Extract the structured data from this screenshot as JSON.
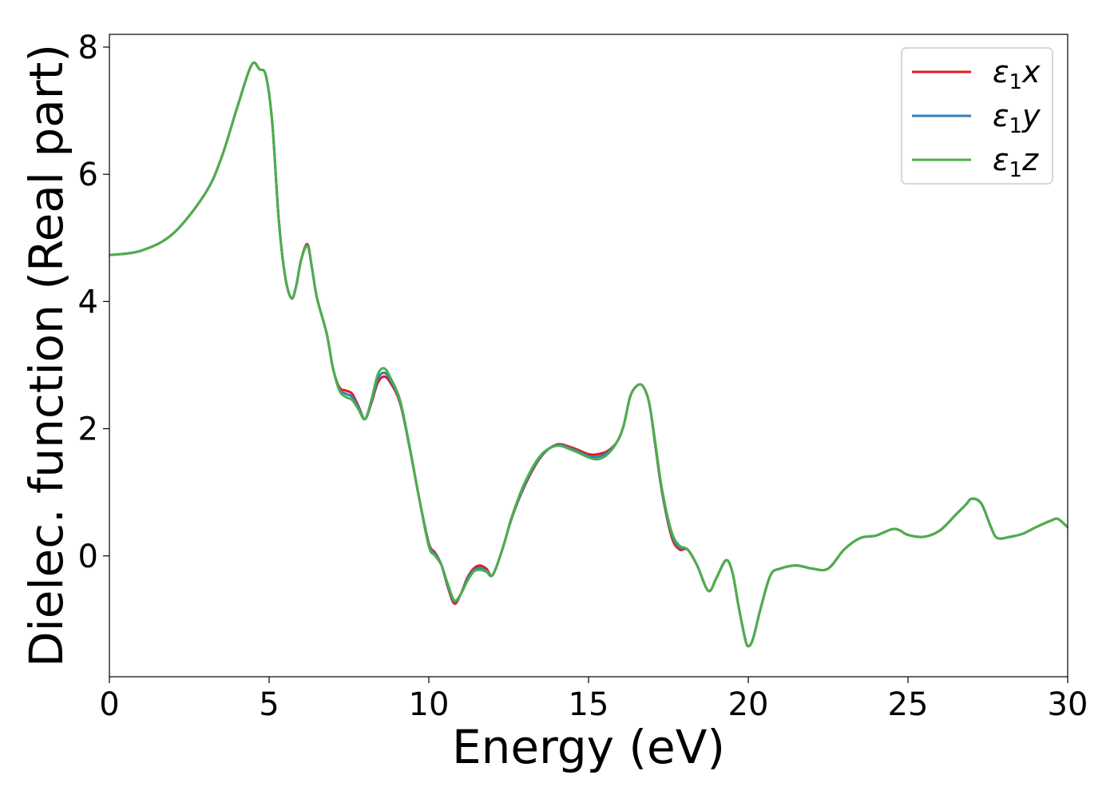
{
  "chart_data": {
    "type": "line",
    "title": "",
    "xlabel": "Energy (eV)",
    "ylabel": "Dielec. function (Real part)",
    "xlim": [
      0,
      30
    ],
    "ylim": [
      -1.9,
      8.2
    ],
    "xticks": [
      0,
      5,
      10,
      15,
      20,
      25,
      30
    ],
    "yticks": [
      0,
      2,
      4,
      6,
      8
    ],
    "xtick_labels": [
      "0",
      "5",
      "10",
      "15",
      "20",
      "25",
      "30"
    ],
    "ytick_labels": [
      "0",
      "2",
      "4",
      "6",
      "8"
    ],
    "grid": false,
    "legend_position": "top-right",
    "series": [
      {
        "name": "ε1x",
        "symbol": "ε",
        "subscript": "1",
        "axis": "x",
        "color": "#e41a1c",
        "x": [
          0,
          1,
          2,
          3,
          3.5,
          4,
          4.45,
          4.7,
          4.9,
          5.1,
          5.3,
          5.5,
          5.7,
          5.85,
          6,
          6.2,
          6.35,
          6.5,
          6.8,
          7,
          7.2,
          7.4,
          7.6,
          7.8,
          8,
          8.2,
          8.4,
          8.6,
          8.8,
          9.1,
          9.4,
          9.7,
          10,
          10.2,
          10.4,
          10.6,
          10.8,
          11,
          11.2,
          11.4,
          11.6,
          11.8,
          12,
          12.3,
          12.6,
          13,
          13.5,
          14,
          14.5,
          15,
          15.3,
          15.6,
          15.9,
          16.1,
          16.3,
          16.5,
          16.7,
          16.9,
          17.1,
          17.3,
          17.6,
          17.85,
          18.1,
          18.4,
          18.75,
          19,
          19.3,
          19.5,
          19.7,
          19.9,
          20,
          20.15,
          20.4,
          20.7,
          21,
          21.5,
          22,
          22.5,
          23,
          23.5,
          24,
          24.5,
          24.75,
          25,
          25.5,
          26,
          26.5,
          26.8,
          27,
          27.3,
          27.6,
          27.8,
          28.2,
          28.6,
          29,
          29.5,
          29.7,
          30
        ],
        "values": [
          4.73,
          4.8,
          5.07,
          5.7,
          6.25,
          7.05,
          7.72,
          7.65,
          7.55,
          6.8,
          5.3,
          4.4,
          4.05,
          4.25,
          4.65,
          4.9,
          4.5,
          4.05,
          3.5,
          2.95,
          2.65,
          2.6,
          2.55,
          2.35,
          2.15,
          2.4,
          2.72,
          2.82,
          2.72,
          2.4,
          1.7,
          0.9,
          0.2,
          0.05,
          -0.15,
          -0.5,
          -0.75,
          -0.6,
          -0.35,
          -0.2,
          -0.15,
          -0.2,
          -0.3,
          0.1,
          0.6,
          1.1,
          1.55,
          1.75,
          1.7,
          1.6,
          1.6,
          1.65,
          1.8,
          2.05,
          2.5,
          2.67,
          2.67,
          2.4,
          1.7,
          1.0,
          0.3,
          0.1,
          0.1,
          -0.15,
          -0.55,
          -0.35,
          -0.07,
          -0.25,
          -0.8,
          -1.3,
          -1.42,
          -1.3,
          -0.8,
          -0.3,
          -0.2,
          -0.15,
          -0.2,
          -0.2,
          0.1,
          0.28,
          0.32,
          0.42,
          0.4,
          0.33,
          0.3,
          0.4,
          0.65,
          0.8,
          0.9,
          0.82,
          0.45,
          0.28,
          0.3,
          0.35,
          0.45,
          0.56,
          0.58,
          0.45
        ]
      },
      {
        "name": "ε1y",
        "symbol": "ε",
        "subscript": "1",
        "axis": "y",
        "color": "#377eb8",
        "x": [
          0,
          1,
          2,
          3,
          3.5,
          4,
          4.45,
          4.7,
          4.9,
          5.1,
          5.3,
          5.5,
          5.7,
          5.85,
          6,
          6.2,
          6.35,
          6.5,
          6.8,
          7,
          7.2,
          7.4,
          7.6,
          7.8,
          8,
          8.2,
          8.4,
          8.6,
          8.8,
          9.1,
          9.4,
          9.7,
          10,
          10.2,
          10.4,
          10.6,
          10.8,
          11,
          11.2,
          11.4,
          11.6,
          11.8,
          12,
          12.3,
          12.6,
          13,
          13.5,
          14,
          14.5,
          15,
          15.3,
          15.6,
          15.9,
          16.1,
          16.3,
          16.5,
          16.7,
          16.9,
          17.1,
          17.3,
          17.6,
          17.85,
          18.1,
          18.4,
          18.75,
          19,
          19.3,
          19.5,
          19.7,
          19.9,
          20,
          20.15,
          20.4,
          20.7,
          21,
          21.5,
          22,
          22.5,
          23,
          23.5,
          24,
          24.5,
          24.75,
          25,
          25.5,
          26,
          26.5,
          26.8,
          27,
          27.3,
          27.6,
          27.8,
          28.2,
          28.6,
          29,
          29.5,
          29.7,
          30
        ],
        "values": [
          4.73,
          4.8,
          5.07,
          5.7,
          6.25,
          7.05,
          7.72,
          7.65,
          7.55,
          6.8,
          5.3,
          4.4,
          4.05,
          4.25,
          4.65,
          4.88,
          4.5,
          4.05,
          3.5,
          2.95,
          2.62,
          2.55,
          2.5,
          2.33,
          2.15,
          2.42,
          2.78,
          2.88,
          2.76,
          2.42,
          1.7,
          0.9,
          0.18,
          0.03,
          -0.15,
          -0.48,
          -0.72,
          -0.6,
          -0.37,
          -0.23,
          -0.19,
          -0.23,
          -0.3,
          0.1,
          0.6,
          1.12,
          1.56,
          1.74,
          1.68,
          1.57,
          1.56,
          1.63,
          1.8,
          2.05,
          2.5,
          2.67,
          2.67,
          2.4,
          1.72,
          1.02,
          0.34,
          0.13,
          0.1,
          -0.15,
          -0.55,
          -0.35,
          -0.07,
          -0.25,
          -0.8,
          -1.3,
          -1.42,
          -1.3,
          -0.8,
          -0.3,
          -0.2,
          -0.15,
          -0.2,
          -0.2,
          0.1,
          0.28,
          0.32,
          0.42,
          0.4,
          0.33,
          0.3,
          0.4,
          0.65,
          0.8,
          0.9,
          0.82,
          0.45,
          0.28,
          0.3,
          0.35,
          0.45,
          0.56,
          0.58,
          0.45
        ]
      },
      {
        "name": "ε1z",
        "symbol": "ε",
        "subscript": "1",
        "axis": "z",
        "color": "#4daf4a",
        "x": [
          0,
          1,
          2,
          3,
          3.5,
          4,
          4.45,
          4.7,
          4.9,
          5.1,
          5.3,
          5.5,
          5.7,
          5.85,
          6,
          6.2,
          6.35,
          6.5,
          6.8,
          7,
          7.2,
          7.4,
          7.6,
          7.8,
          8,
          8.2,
          8.4,
          8.6,
          8.8,
          9.1,
          9.4,
          9.7,
          10,
          10.2,
          10.4,
          10.6,
          10.8,
          11,
          11.2,
          11.4,
          11.6,
          11.8,
          12,
          12.3,
          12.6,
          13,
          13.5,
          14,
          14.5,
          15,
          15.3,
          15.6,
          15.9,
          16.1,
          16.3,
          16.5,
          16.7,
          16.9,
          17.1,
          17.3,
          17.6,
          17.85,
          18.1,
          18.4,
          18.75,
          19,
          19.3,
          19.5,
          19.7,
          19.9,
          20,
          20.15,
          20.4,
          20.7,
          21,
          21.5,
          22,
          22.5,
          23,
          23.5,
          24,
          24.5,
          24.75,
          25,
          25.5,
          26,
          26.5,
          26.8,
          27,
          27.3,
          27.6,
          27.8,
          28.2,
          28.6,
          29,
          29.5,
          29.7,
          30
        ],
        "values": [
          4.73,
          4.8,
          5.07,
          5.7,
          6.25,
          7.05,
          7.72,
          7.65,
          7.55,
          6.8,
          5.3,
          4.4,
          4.05,
          4.25,
          4.65,
          4.87,
          4.5,
          4.05,
          3.5,
          2.95,
          2.6,
          2.5,
          2.45,
          2.3,
          2.15,
          2.45,
          2.85,
          2.95,
          2.8,
          2.45,
          1.72,
          0.9,
          0.15,
          0.0,
          -0.15,
          -0.45,
          -0.7,
          -0.6,
          -0.4,
          -0.25,
          -0.22,
          -0.25,
          -0.3,
          0.1,
          0.62,
          1.15,
          1.58,
          1.73,
          1.66,
          1.55,
          1.52,
          1.6,
          1.8,
          2.05,
          2.5,
          2.67,
          2.67,
          2.4,
          1.75,
          1.05,
          0.38,
          0.16,
          0.1,
          -0.15,
          -0.55,
          -0.35,
          -0.07,
          -0.25,
          -0.8,
          -1.3,
          -1.42,
          -1.3,
          -0.8,
          -0.3,
          -0.2,
          -0.15,
          -0.2,
          -0.2,
          0.1,
          0.28,
          0.32,
          0.42,
          0.4,
          0.33,
          0.3,
          0.4,
          0.65,
          0.8,
          0.9,
          0.82,
          0.45,
          0.28,
          0.3,
          0.35,
          0.45,
          0.56,
          0.58,
          0.45
        ]
      }
    ]
  }
}
